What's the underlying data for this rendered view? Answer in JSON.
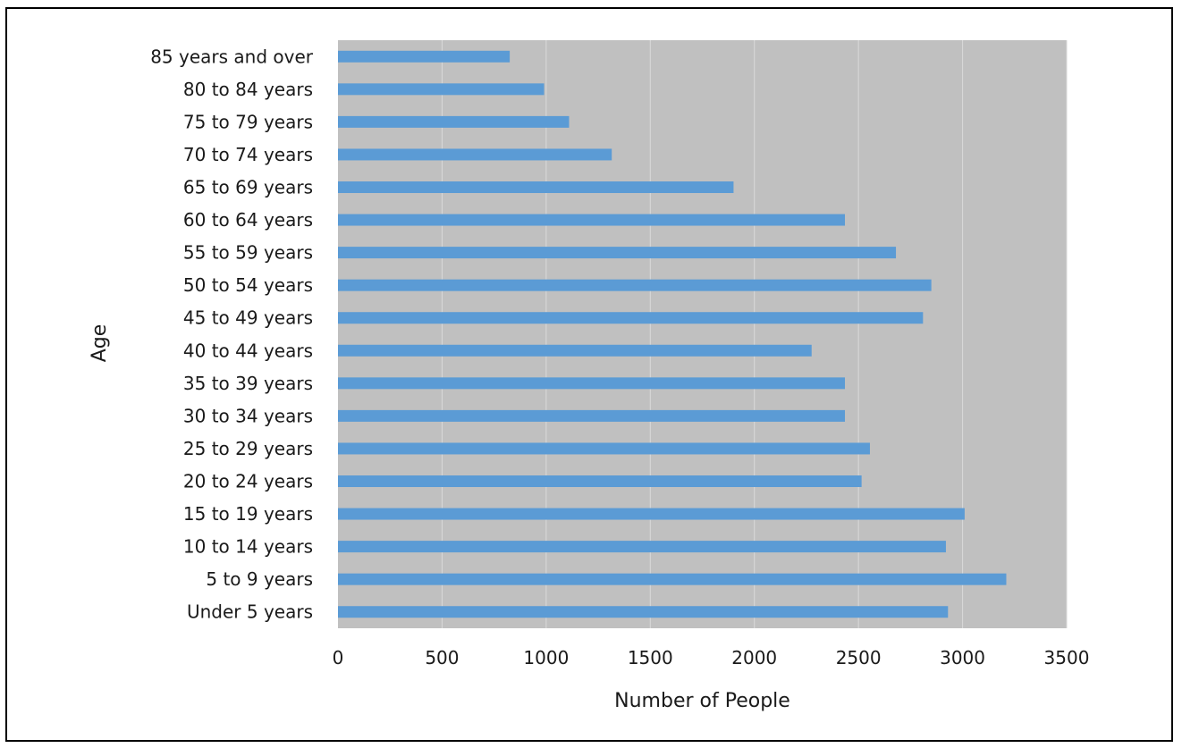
{
  "chart_data": {
    "type": "bar",
    "orientation": "horizontal",
    "title": "",
    "xlabel": "Number of People",
    "ylabel": "Age",
    "categories": [
      "Under 5 years",
      "5 to 9 years",
      "10 to 14 years",
      "15 to 19 years",
      "20 to 24 years",
      "25 to 29 years",
      "30 to 34 years",
      "35 to 39 years",
      "40 to 44 years",
      "45 to 49 years",
      "50 to 54 years",
      "55 to 59 years",
      "60 to 64 years",
      "65 to 69 years",
      "70 to 74 years",
      "75 to 79 years",
      "80 to 84 years",
      "85 years and over"
    ],
    "values": [
      2930,
      3210,
      2920,
      3010,
      2515,
      2555,
      2435,
      2435,
      2275,
      2810,
      2850,
      2680,
      2435,
      1900,
      1315,
      1110,
      990,
      825
    ],
    "xlim": [
      0,
      3500
    ],
    "xticks": [
      "0",
      "500",
      "1000",
      "1500",
      "2000",
      "2500",
      "3000",
      "3500"
    ],
    "xtick_values": [
      0,
      500,
      1000,
      1500,
      2000,
      2500,
      3000,
      3500
    ],
    "grid": true,
    "legend": "none",
    "bar_color": "#5b9bd5",
    "plot_background": "#c0c0c0",
    "gridline_color": "#d9d9d9"
  }
}
